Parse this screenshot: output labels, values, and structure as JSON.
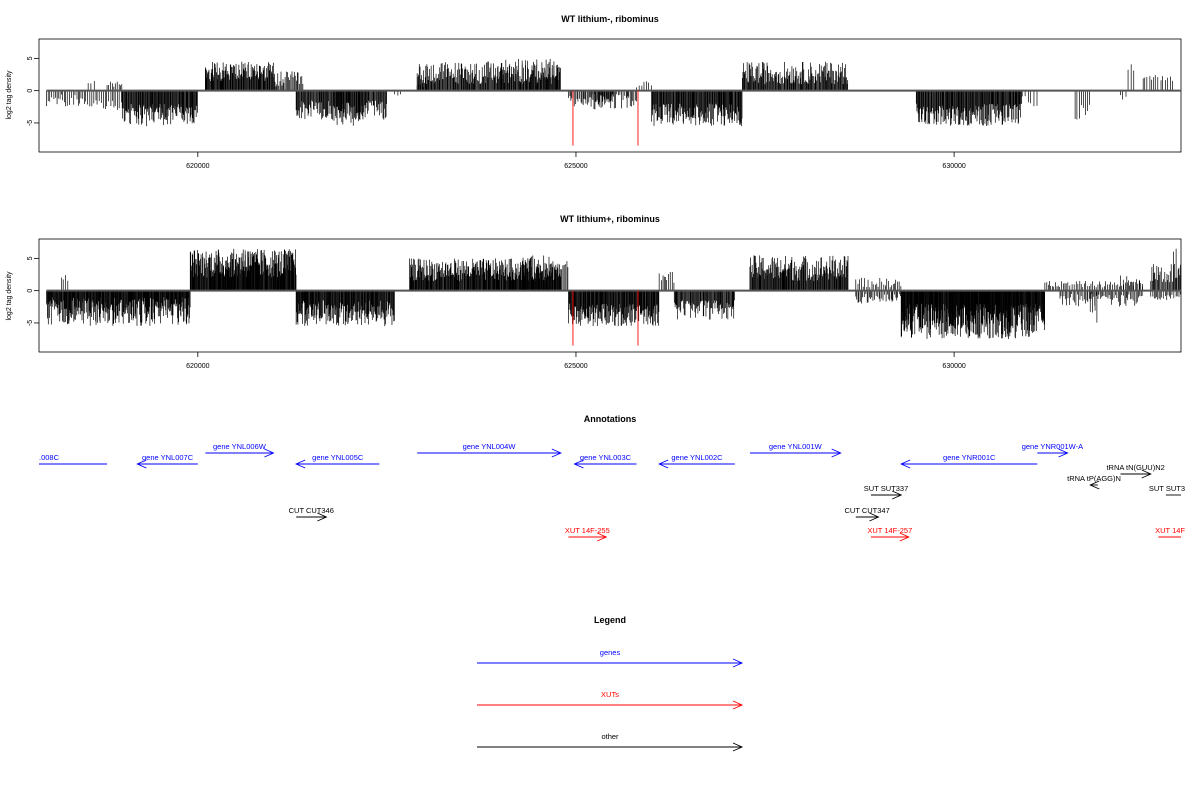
{
  "chart_data": [
    {
      "type": "bar",
      "title": "WT lithium-, ribominus",
      "ylabel": "log2 tag density",
      "xlim": [
        617900,
        633000
      ],
      "ylim": [
        -9.5,
        8
      ],
      "x_ticks": [
        620000,
        625000,
        630000
      ],
      "y_ticks": [
        -5,
        0,
        5
      ],
      "baseline_extent": [
        618000,
        633000
      ],
      "highlight_lines": [
        {
          "x": 624960,
          "min": -8.5,
          "color": "#ff0000"
        },
        {
          "x": 625820,
          "min": -8.5,
          "color": "#ff0000"
        }
      ],
      "regions": [
        {
          "start": 618000,
          "end": 618500,
          "sign": -1,
          "min": 0.5,
          "max": 2.5,
          "density": 0.03
        },
        {
          "start": 618500,
          "end": 619000,
          "sign": -1,
          "min": 1.5,
          "max": 3,
          "density": 0.03
        },
        {
          "start": 618550,
          "end": 618650,
          "sign": 1,
          "min": 1,
          "max": 1.5,
          "density": 0.02
        },
        {
          "start": 618800,
          "end": 619000,
          "sign": 1,
          "min": 0.5,
          "max": 1.5,
          "density": 0.03
        },
        {
          "start": 619000,
          "end": 620000,
          "sign": -1,
          "min": 2,
          "max": 5.5,
          "density": 0.08
        },
        {
          "start": 620100,
          "end": 621000,
          "sign": 1,
          "min": 1.5,
          "max": 4.5,
          "density": 0.08
        },
        {
          "start": 621000,
          "end": 621400,
          "sign": 1,
          "min": 0.5,
          "max": 3,
          "density": 0.05
        },
        {
          "start": 621300,
          "end": 622500,
          "sign": -1,
          "min": 1.5,
          "max": 4.5,
          "density": 0.07
        },
        {
          "start": 621800,
          "end": 622200,
          "sign": -1,
          "min": 3,
          "max": 5.5,
          "density": 0.03
        },
        {
          "start": 622600,
          "end": 622700,
          "sign": -1,
          "min": 0.5,
          "max": 1,
          "density": 0.02
        },
        {
          "start": 622900,
          "end": 623000,
          "sign": 1,
          "min": 0.5,
          "max": 1,
          "density": 0.02
        },
        {
          "start": 622900,
          "end": 624800,
          "sign": 1,
          "min": 1,
          "max": 4.5,
          "density": 0.07
        },
        {
          "start": 624000,
          "end": 624800,
          "sign": 1,
          "min": 2,
          "max": 5,
          "density": 0.03
        },
        {
          "start": 624900,
          "end": 625500,
          "sign": -1,
          "min": 0.5,
          "max": 2.5,
          "density": 0.04
        },
        {
          "start": 625200,
          "end": 625800,
          "sign": -1,
          "min": 0.5,
          "max": 3,
          "density": 0.04
        },
        {
          "start": 625800,
          "end": 626000,
          "sign": 1,
          "min": 0.5,
          "max": 1.5,
          "density": 0.02
        },
        {
          "start": 626000,
          "end": 627200,
          "sign": -1,
          "min": 2,
          "max": 5.5,
          "density": 0.08
        },
        {
          "start": 627200,
          "end": 628600,
          "sign": 1,
          "min": 1,
          "max": 4.5,
          "density": 0.07
        },
        {
          "start": 629500,
          "end": 630900,
          "sign": -1,
          "min": 2,
          "max": 5.5,
          "density": 0.08
        },
        {
          "start": 630900,
          "end": 631100,
          "sign": -1,
          "min": 0.5,
          "max": 2.5,
          "density": 0.02
        },
        {
          "start": 631600,
          "end": 631800,
          "sign": -1,
          "min": 1,
          "max": 4.5,
          "density": 0.02
        },
        {
          "start": 632200,
          "end": 632300,
          "sign": -1,
          "min": 0.5,
          "max": 1.5,
          "density": 0.02
        },
        {
          "start": 632300,
          "end": 632400,
          "sign": 1,
          "min": 3,
          "max": 4.5,
          "density": 0.02
        },
        {
          "start": 632500,
          "end": 632900,
          "sign": 1,
          "min": 1.5,
          "max": 2.5,
          "density": 0.02
        }
      ]
    },
    {
      "type": "bar",
      "title": "WT lithium+, ribominus",
      "ylabel": "log2 tag density",
      "xlim": [
        617900,
        633000
      ],
      "ylim": [
        -9.5,
        8
      ],
      "x_ticks": [
        620000,
        625000,
        630000
      ],
      "y_ticks": [
        -5,
        0,
        5
      ],
      "baseline_extent": [
        618000,
        633000
      ],
      "highlight_lines": [
        {
          "x": 624960,
          "min": -8.5,
          "color": "#ff0000"
        },
        {
          "x": 625820,
          "min": -8.5,
          "color": "#ff0000"
        }
      ],
      "regions": [
        {
          "start": 618000,
          "end": 619900,
          "sign": -1,
          "min": 1,
          "max": 5.5,
          "density": 0.1
        },
        {
          "start": 618200,
          "end": 618300,
          "sign": 1,
          "min": 1.5,
          "max": 2.5,
          "density": 0.02
        },
        {
          "start": 619900,
          "end": 621300,
          "sign": 1,
          "min": 2,
          "max": 6.5,
          "density": 0.1
        },
        {
          "start": 620600,
          "end": 620700,
          "sign": 1,
          "min": 6,
          "max": 7,
          "density": 0.02
        },
        {
          "start": 621300,
          "end": 622600,
          "sign": -1,
          "min": 1.5,
          "max": 5.5,
          "density": 0.09
        },
        {
          "start": 622800,
          "end": 624800,
          "sign": 1,
          "min": 1.5,
          "max": 5,
          "density": 0.09
        },
        {
          "start": 624300,
          "end": 624900,
          "sign": 1,
          "min": 2.5,
          "max": 5.5,
          "density": 0.04
        },
        {
          "start": 624900,
          "end": 626100,
          "sign": -1,
          "min": 2,
          "max": 5.5,
          "density": 0.09
        },
        {
          "start": 626100,
          "end": 626300,
          "sign": 1,
          "min": 1,
          "max": 3,
          "density": 0.03
        },
        {
          "start": 626300,
          "end": 627100,
          "sign": -1,
          "min": 1.5,
          "max": 4.5,
          "density": 0.07
        },
        {
          "start": 627300,
          "end": 628600,
          "sign": 1,
          "min": 1.5,
          "max": 5.5,
          "density": 0.08
        },
        {
          "start": 628700,
          "end": 629300,
          "sign": -1,
          "min": 0.5,
          "max": 2,
          "density": 0.04
        },
        {
          "start": 628700,
          "end": 629300,
          "sign": 1,
          "min": 0.5,
          "max": 2,
          "density": 0.03
        },
        {
          "start": 629300,
          "end": 631200,
          "sign": -1,
          "min": 2,
          "max": 7.5,
          "density": 0.12
        },
        {
          "start": 631200,
          "end": 632500,
          "sign": 1,
          "min": 0.5,
          "max": 1.5,
          "density": 0.03
        },
        {
          "start": 631400,
          "end": 632500,
          "sign": -1,
          "min": 0.5,
          "max": 2.5,
          "density": 0.04
        },
        {
          "start": 631800,
          "end": 631900,
          "sign": -1,
          "min": 3,
          "max": 5,
          "density": 0.02
        },
        {
          "start": 632200,
          "end": 632500,
          "sign": 1,
          "min": 1,
          "max": 2.5,
          "density": 0.02
        },
        {
          "start": 632600,
          "end": 633000,
          "sign": 1,
          "min": 1,
          "max": 4.5,
          "density": 0.05
        },
        {
          "start": 632900,
          "end": 632950,
          "sign": 1,
          "min": 5.5,
          "max": 6.5,
          "density": 0.02
        },
        {
          "start": 632600,
          "end": 633000,
          "sign": -1,
          "min": 0.5,
          "max": 1.5,
          "density": 0.03
        }
      ]
    }
  ],
  "annotations": {
    "title": "Annotations",
    "xlim": [
      617900,
      633000
    ],
    "features": [
      {
        "label": ".008C",
        "start": 617900,
        "end": 618800,
        "dir": "none",
        "row": 1,
        "color": "#0000ff"
      },
      {
        "label": "gene YNL007C",
        "start": 619200,
        "end": 620000,
        "dir": "left",
        "row": 1,
        "color": "#0000ff"
      },
      {
        "label": "gene YNL006W",
        "start": 620100,
        "end": 621000,
        "dir": "right",
        "row": 0,
        "color": "#0000ff"
      },
      {
        "label": "gene YNL005C",
        "start": 621300,
        "end": 622400,
        "dir": "left",
        "row": 1,
        "color": "#0000ff"
      },
      {
        "label": "gene YNL004W",
        "start": 622900,
        "end": 624800,
        "dir": "right",
        "row": 0,
        "color": "#0000ff"
      },
      {
        "label": "gene YNL003C",
        "start": 624980,
        "end": 625800,
        "dir": "left",
        "row": 1,
        "color": "#0000ff"
      },
      {
        "label": "gene YNL002C",
        "start": 626100,
        "end": 627100,
        "dir": "left",
        "row": 1,
        "color": "#0000ff"
      },
      {
        "label": "gene YNL001W",
        "start": 627300,
        "end": 628500,
        "dir": "right",
        "row": 0,
        "color": "#0000ff"
      },
      {
        "label": "gene YNR001C",
        "start": 629300,
        "end": 631100,
        "dir": "left",
        "row": 1,
        "color": "#0000ff"
      },
      {
        "label": "gene YNR001W-A",
        "start": 631100,
        "end": 631500,
        "dir": "right",
        "row": 0,
        "color": "#0000ff"
      },
      {
        "label": "SUT SUT337",
        "start": 628900,
        "end": 629300,
        "dir": "right",
        "row": 2,
        "color": "#000000"
      },
      {
        "label": "tRNA tP(AGG)N",
        "start": 631800,
        "end": 631900,
        "dir": "left",
        "row": 3,
        "color": "#000000"
      },
      {
        "label": "tRNA tN(GUU)N2",
        "start": 632200,
        "end": 632600,
        "dir": "right",
        "row": 4,
        "color": "#000000"
      },
      {
        "label": "SUT SUT3",
        "start": 632800,
        "end": 633000,
        "dir": "none",
        "row": 2,
        "color": "#000000"
      },
      {
        "label": "CUT CUT346",
        "start": 621300,
        "end": 621700,
        "dir": "right",
        "row": 5,
        "color": "#000000"
      },
      {
        "label": "CUT CUT347",
        "start": 628700,
        "end": 629000,
        "dir": "right",
        "row": 5,
        "color": "#000000"
      },
      {
        "label": "XUT 14F-255",
        "start": 624900,
        "end": 625400,
        "dir": "right",
        "row": 6,
        "color": "#ff0000"
      },
      {
        "label": "XUT 14F-257",
        "start": 628900,
        "end": 629400,
        "dir": "right",
        "row": 6,
        "color": "#ff0000"
      },
      {
        "label": "XUT 14F",
        "start": 632700,
        "end": 633000,
        "dir": "none",
        "row": 6,
        "color": "#ff0000"
      }
    ]
  },
  "legend": {
    "title": "Legend",
    "entries": [
      {
        "label": "genes",
        "color": "#0000ff"
      },
      {
        "label": "XUTs",
        "color": "#ff0000"
      },
      {
        "label": "other",
        "color": "#000000"
      }
    ]
  }
}
